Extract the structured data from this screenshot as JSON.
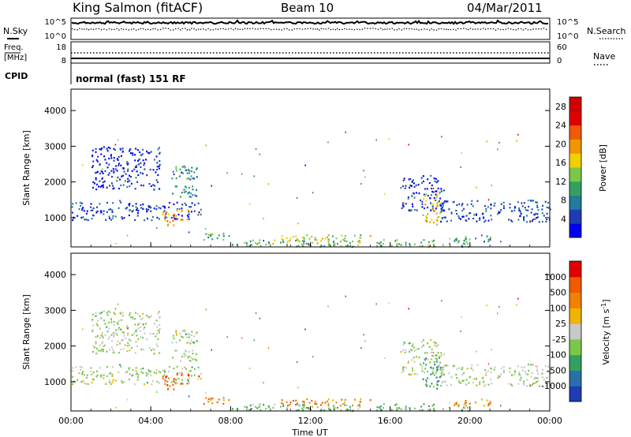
{
  "header": {
    "station": "King Salmon (fitACF)",
    "beam": "Beam 10",
    "date": "04/Mar/2011"
  },
  "noise_panel": {
    "left_label": "N.Sky",
    "right_label": "N.Search",
    "left_ticks": [
      "10^5",
      "10^0"
    ],
    "right_ticks": [
      "10^5",
      "10^0"
    ]
  },
  "freq_panel": {
    "left_label_1": "Freq.",
    "left_label_2": "[MHz]",
    "right_label": "Nave",
    "left_ticks": [
      "18",
      "8"
    ],
    "right_ticks": [
      "60",
      "0"
    ]
  },
  "cpid": {
    "label": "CPID",
    "value": "normal (fast) 151 RF"
  },
  "chart_data": [
    {
      "type": "heatmap",
      "quantity": "Power",
      "ylabel": "Slant Range [km]",
      "ylim": [
        180,
        4600
      ],
      "yticks": [
        "1000",
        "2000",
        "3000",
        "4000"
      ],
      "yticks_values": [
        1000,
        2000,
        3000,
        4000
      ],
      "xlim": [
        0,
        24
      ],
      "colorbar": {
        "label": "Power [dB]",
        "ticks": [
          "4",
          "8",
          "12",
          "16",
          "20",
          "24",
          "28"
        ],
        "tick_values": [
          4,
          8,
          12,
          16,
          20,
          24,
          28
        ],
        "range": [
          0,
          30
        ],
        "colors": [
          "#0000f0",
          "#1e3cb4",
          "#237a9b",
          "#33a060",
          "#7ac84a",
          "#f0d000",
          "#f09600",
          "#f05a00",
          "#e00000",
          "#d00000"
        ]
      },
      "regions": [
        {
          "t0": 0.0,
          "t1": 6.5,
          "r0": 950,
          "r1": 1450,
          "level": 0.15
        },
        {
          "t0": 4.5,
          "t1": 5.9,
          "r0": 800,
          "r1": 1250,
          "level": 0.65
        },
        {
          "t0": 1.0,
          "t1": 4.5,
          "r0": 1800,
          "r1": 3000,
          "level": 0.1
        },
        {
          "t0": 5.0,
          "t1": 6.3,
          "r0": 1600,
          "r1": 2500,
          "level": 0.3
        },
        {
          "t0": 6.5,
          "t1": 8.0,
          "r0": 400,
          "r1": 600,
          "level": 0.35
        },
        {
          "t0": 10.5,
          "t1": 15.0,
          "r0": 350,
          "r1": 550,
          "level": 0.5
        },
        {
          "t0": 8.0,
          "t1": 20.0,
          "r0": 200,
          "r1": 400,
          "level": 0.4
        },
        {
          "t0": 16.5,
          "t1": 18.7,
          "r0": 1200,
          "r1": 2200,
          "level": 0.12
        },
        {
          "t0": 17.6,
          "t1": 18.5,
          "r0": 800,
          "r1": 1700,
          "level": 0.55
        },
        {
          "t0": 18.5,
          "t1": 24.0,
          "r0": 900,
          "r1": 1500,
          "level": 0.15
        },
        {
          "t0": 19.0,
          "t1": 21.0,
          "r0": 350,
          "r1": 550,
          "level": 0.3
        }
      ]
    },
    {
      "type": "heatmap",
      "quantity": "Velocity",
      "ylabel": "Slant Range [km]",
      "ylim": [
        180,
        4600
      ],
      "yticks": [
        "1000",
        "2000",
        "3000",
        "4000"
      ],
      "yticks_values": [
        1000,
        2000,
        3000,
        4000
      ],
      "xlim": [
        0,
        24
      ],
      "xticks": [
        "00:00",
        "04:00",
        "08:00",
        "12:00",
        "16:00",
        "20:00",
        "00:00"
      ],
      "xticks_values": [
        0,
        4,
        8,
        12,
        16,
        20,
        24
      ],
      "xlabel": "Time UT",
      "colorbar": {
        "label": "Velocity [m s^-1]",
        "ticks": [
          "1000",
          "500",
          "100",
          "25",
          "-25",
          "-100",
          "-500",
          "-1000"
        ],
        "colors": [
          "#1e3cb4",
          "#2a70a8",
          "#33a060",
          "#7ac84a",
          "#c8c8c8",
          "#f0b400",
          "#f08200",
          "#f05a00",
          "#e00000"
        ]
      },
      "regions": [
        {
          "t0": 0.0,
          "t1": 6.5,
          "r0": 950,
          "r1": 1450,
          "level": 0.45
        },
        {
          "t0": 4.5,
          "t1": 5.9,
          "r0": 800,
          "r1": 1250,
          "level": 0.8
        },
        {
          "t0": 1.0,
          "t1": 4.5,
          "r0": 1800,
          "r1": 3000,
          "level": 0.45
        },
        {
          "t0": 5.0,
          "t1": 6.3,
          "r0": 1600,
          "r1": 2500,
          "level": 0.45
        },
        {
          "t0": 6.5,
          "t1": 8.0,
          "r0": 400,
          "r1": 600,
          "level": 0.75
        },
        {
          "t0": 10.5,
          "t1": 15.0,
          "r0": 350,
          "r1": 550,
          "level": 0.75
        },
        {
          "t0": 8.0,
          "t1": 20.0,
          "r0": 200,
          "r1": 400,
          "level": 0.35
        },
        {
          "t0": 16.5,
          "t1": 18.7,
          "r0": 1200,
          "r1": 2200,
          "level": 0.45
        },
        {
          "t0": 17.6,
          "t1": 18.5,
          "r0": 800,
          "r1": 1700,
          "level": 0.25
        },
        {
          "t0": 18.5,
          "t1": 24.0,
          "r0": 900,
          "r1": 1500,
          "level": 0.45
        },
        {
          "t0": 19.0,
          "t1": 21.0,
          "r0": 350,
          "r1": 550,
          "level": 0.7
        }
      ]
    }
  ]
}
